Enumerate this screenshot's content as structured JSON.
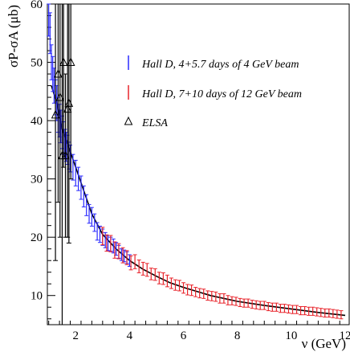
{
  "chart_data": {
    "type": "scatter",
    "xlabel": "ν (GeV)",
    "ylabel": "σP-σA (μb)",
    "xlim": [
      0.95,
      12.15
    ],
    "ylim": [
      5,
      60
    ],
    "x_ticks": [
      2,
      4,
      6,
      8,
      10,
      12
    ],
    "y_ticks": [
      10,
      20,
      30,
      40,
      50,
      60
    ],
    "grid": false,
    "legend_position": "top-right",
    "fit_curve": {
      "color": "#000000",
      "x": [
        1.1,
        1.3,
        1.5,
        1.7,
        2.0,
        2.3,
        2.6,
        3.0,
        3.5,
        4.0,
        4.5,
        5.0,
        5.5,
        6.0,
        7.0,
        8.0,
        9.0,
        10.0,
        11.0,
        12.0
      ],
      "y": [
        46,
        43,
        38.5,
        36,
        32,
        28,
        24,
        20.5,
        18,
        16,
        14.5,
        13.3,
        12.2,
        11.4,
        10.0,
        9.0,
        8.3,
        7.7,
        7.1,
        6.6
      ]
    },
    "series": [
      {
        "name": "Hall D, 4+5.7 days of 4 GeV beam",
        "marker": "errorbar",
        "color": "#2b2bff",
        "x": [
          1.0,
          1.05,
          1.1,
          1.15,
          1.2,
          1.25,
          1.3,
          1.35,
          1.4,
          1.45,
          1.5,
          1.55,
          1.6,
          1.65,
          1.7,
          1.75,
          1.8,
          1.9,
          2.0,
          2.1,
          2.2,
          2.3,
          2.4,
          2.5,
          2.6,
          2.7,
          2.8,
          2.9,
          3.0,
          3.1,
          3.2,
          3.3,
          3.4,
          3.5,
          3.6,
          3.7,
          3.8,
          3.9,
          4.0
        ],
        "y": [
          58,
          55,
          50,
          48,
          46,
          44,
          43,
          41,
          40,
          39,
          38,
          37,
          36,
          35.5,
          35,
          34,
          33.5,
          32,
          31,
          30,
          28.5,
          27,
          25.5,
          24,
          23.5,
          22.5,
          21,
          20.5,
          20,
          19.5,
          19,
          18.8,
          18.5,
          18,
          17.5,
          17,
          16.8,
          16.5,
          16
        ],
        "err": [
          3.5,
          3.5,
          3.0,
          3.0,
          3.0,
          3.0,
          3.0,
          3.0,
          2.8,
          2.8,
          2.8,
          2.8,
          2.5,
          2.5,
          2.5,
          2.3,
          2.3,
          2.2,
          2.2,
          2.0,
          2.0,
          1.8,
          1.8,
          1.6,
          1.6,
          1.5,
          1.5,
          1.4,
          1.4,
          1.3,
          1.3,
          1.2,
          1.2,
          1.1,
          1.1,
          1.0,
          1.0,
          1.0,
          1.0
        ]
      },
      {
        "name": "Hall D, 7+10 days of 12 GeV beam",
        "marker": "errorbar",
        "color": "#e8242b",
        "x": [
          3.0,
          3.15,
          3.3,
          3.45,
          3.6,
          3.75,
          3.9,
          4.05,
          4.2,
          4.35,
          4.5,
          4.65,
          4.8,
          4.95,
          5.1,
          5.25,
          5.4,
          5.55,
          5.7,
          5.85,
          6.0,
          6.15,
          6.3,
          6.45,
          6.6,
          6.75,
          6.9,
          7.05,
          7.2,
          7.35,
          7.5,
          7.65,
          7.8,
          7.95,
          8.1,
          8.25,
          8.4,
          8.55,
          8.7,
          8.85,
          9.0,
          9.15,
          9.3,
          9.45,
          9.6,
          9.75,
          9.9,
          10.05,
          10.2,
          10.35,
          10.5,
          10.65,
          10.8,
          10.95,
          11.1,
          11.25,
          11.4,
          11.55,
          11.7,
          11.85
        ],
        "y": [
          20.2,
          19.0,
          18.9,
          17.8,
          17.6,
          16.9,
          16.5,
          15.6,
          15.8,
          15.0,
          14.6,
          14.4,
          13.7,
          13.6,
          13.0,
          12.9,
          12.5,
          12.1,
          11.8,
          11.7,
          11.3,
          11.0,
          10.9,
          10.6,
          10.4,
          10.3,
          10.0,
          9.9,
          9.8,
          9.5,
          9.5,
          9.2,
          9.1,
          9.0,
          8.8,
          8.7,
          8.7,
          8.5,
          8.4,
          8.3,
          8.3,
          8.1,
          8.0,
          8.0,
          7.8,
          7.8,
          7.7,
          7.6,
          7.6,
          7.4,
          7.4,
          7.3,
          7.3,
          7.2,
          7.1,
          7.0,
          7.0,
          6.9,
          6.8,
          6.7
        ],
        "err": [
          1.5,
          1.4,
          1.4,
          1.4,
          1.3,
          1.3,
          1.2,
          1.2,
          1.2,
          1.1,
          1.1,
          1.1,
          1.0,
          1.0,
          1.0,
          1.0,
          1.0,
          0.9,
          0.9,
          0.9,
          0.9,
          0.9,
          0.9,
          0.8,
          0.8,
          0.8,
          0.8,
          0.8,
          0.8,
          0.8,
          0.8,
          0.8,
          0.7,
          0.7,
          0.7,
          0.7,
          0.7,
          0.7,
          0.7,
          0.7,
          0.7,
          0.7,
          0.7,
          0.7,
          0.7,
          0.7,
          0.7,
          0.7,
          0.7,
          0.7,
          0.7,
          0.7,
          0.7,
          0.7,
          0.7,
          0.7,
          0.7,
          0.7,
          0.7,
          0.7
        ]
      },
      {
        "name": "ELSA",
        "marker": "triangle",
        "color": "#000000",
        "x": [
          1.25,
          1.35,
          1.42,
          1.5,
          1.55,
          1.62,
          1.7,
          1.75,
          1.82
        ],
        "y": [
          41,
          48,
          44,
          34,
          50,
          34,
          42,
          43,
          50
        ],
        "err": [
          25,
          22,
          24,
          30,
          18,
          14,
          22,
          24,
          20
        ]
      }
    ]
  }
}
